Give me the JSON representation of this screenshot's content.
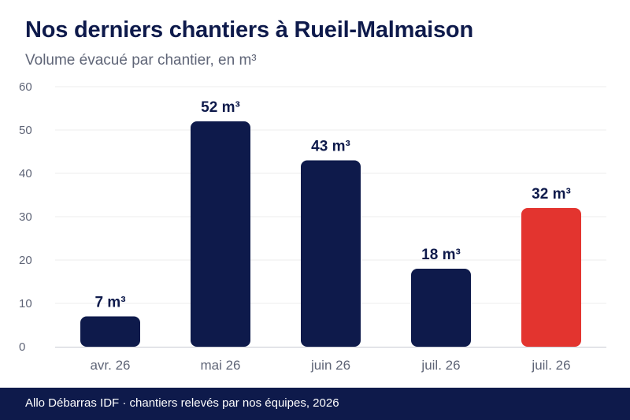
{
  "colors": {
    "primary": "#0e1a4b",
    "highlight": "#e3342f",
    "grid": "#ececec",
    "axis": "#c9cad3",
    "tick_text": "#5f6577"
  },
  "chart_data": {
    "type": "bar",
    "title": "Nos derniers chantiers à Rueil-Malmaison",
    "subtitle": "Volume évacué par chantier, en m³",
    "categories": [
      "avr. 26",
      "mai 26",
      "juin 26",
      "juil. 26",
      "juil. 26"
    ],
    "values": [
      7,
      52,
      43,
      18,
      32
    ],
    "value_labels": [
      "7 m³",
      "52 m³",
      "43 m³",
      "18 m³",
      "32 m³"
    ],
    "highlighted_index": 4,
    "ylim": [
      0,
      60
    ],
    "yticks": [
      "0",
      "10",
      "20",
      "30",
      "40",
      "50",
      "60"
    ],
    "grid": true
  },
  "footer": {
    "text": "Allo Débarras IDF · chantiers relevés par nos équipes, 2026"
  }
}
